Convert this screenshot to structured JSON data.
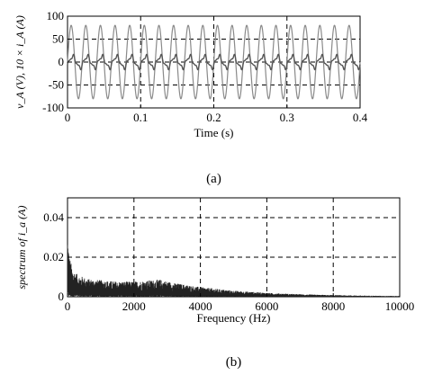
{
  "chart_data": [
    {
      "panel": "a",
      "type": "line",
      "caption": "(a)",
      "xlabel": "Time (s)",
      "ylabel": "v_A (V), 10 × i_A (A)",
      "xlim": [
        0,
        0.4
      ],
      "ylim": [
        -100,
        100
      ],
      "xticks": [
        0,
        0.1,
        0.2,
        0.3,
        0.4
      ],
      "xtick_labels": [
        "0",
        "0.1",
        "0.2",
        "0.3",
        "0.4"
      ],
      "yticks": [
        -100,
        -50,
        0,
        50,
        100
      ],
      "ytick_labels": [
        "-100",
        "-50",
        "0",
        "50",
        "100"
      ],
      "grid": true,
      "series": [
        {
          "kind": "sine",
          "amplitude": 80,
          "frequency_hz": 50,
          "color": "#8a8a8a"
        },
        {
          "kind": "distorted",
          "amplitude": 12,
          "frequency_hz": 50,
          "color": "#555555"
        }
      ]
    },
    {
      "panel": "b",
      "type": "line",
      "caption": "(b)",
      "xlabel": "Frequency (Hz)",
      "ylabel": "spectrum of i_a (A)",
      "xlim": [
        0,
        10000
      ],
      "ylim": [
        0,
        0.05
      ],
      "xticks": [
        0,
        2000,
        4000,
        6000,
        8000,
        10000
      ],
      "xtick_labels": [
        "0",
        "2000",
        "4000",
        "6000",
        "8000",
        "10000"
      ],
      "yticks": [
        0,
        0.02,
        0.04
      ],
      "ytick_labels": [
        "0",
        "0.02",
        "0.04"
      ],
      "grid": true,
      "envelope": {
        "frequency_hz": [
          0,
          50,
          150,
          300,
          600,
          1000,
          1500,
          2000,
          2500,
          2800,
          3200,
          4000,
          5000,
          6000,
          7000,
          8000,
          9000,
          10000
        ],
        "magnitude_a": [
          0.024,
          0.015,
          0.01,
          0.008,
          0.0065,
          0.006,
          0.0055,
          0.0055,
          0.006,
          0.0062,
          0.005,
          0.0035,
          0.0022,
          0.0014,
          0.0009,
          0.0006,
          0.0004,
          0.0003
        ]
      },
      "series_color": "#222222"
    }
  ]
}
